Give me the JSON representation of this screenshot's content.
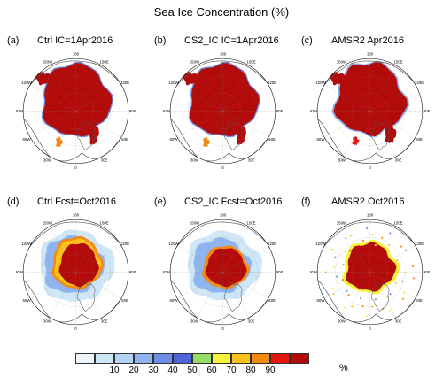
{
  "figure_title": "Sea Ice Concentration (%)",
  "panels": [
    {
      "tag": "(a)",
      "name": "Ctrl IC=1Apr2016"
    },
    {
      "tag": "(b)",
      "name": "CS2_IC IC=1Apr2016"
    },
    {
      "tag": "(c)",
      "name": "AMSR2 Apr2016"
    },
    {
      "tag": "(d)",
      "name": "Ctrl Fcst=Oct2016"
    },
    {
      "tag": "(e)",
      "name": "CS2_IC Fcst=Oct2016"
    },
    {
      "tag": "(f)",
      "name": "AMSR2 Oct2016"
    }
  ],
  "longitude_labels": [
    "180",
    "150E",
    "120E",
    "90E",
    "60E",
    "30E",
    "0",
    "30W",
    "60W",
    "90W",
    "120W",
    "150W"
  ],
  "colorbar": {
    "colors": [
      "#eef6fb",
      "#cfe6f7",
      "#b3d3f4",
      "#8fb5f0",
      "#6f8fe6",
      "#4f64d8",
      "#96dd66",
      "#f6f53a",
      "#fbc21e",
      "#f58a12",
      "#e2170f",
      "#b30a0a"
    ],
    "tick_labels": [
      "10",
      "20",
      "30",
      "40",
      "50",
      "60",
      "70",
      "80",
      "90"
    ],
    "unit": "%"
  }
}
